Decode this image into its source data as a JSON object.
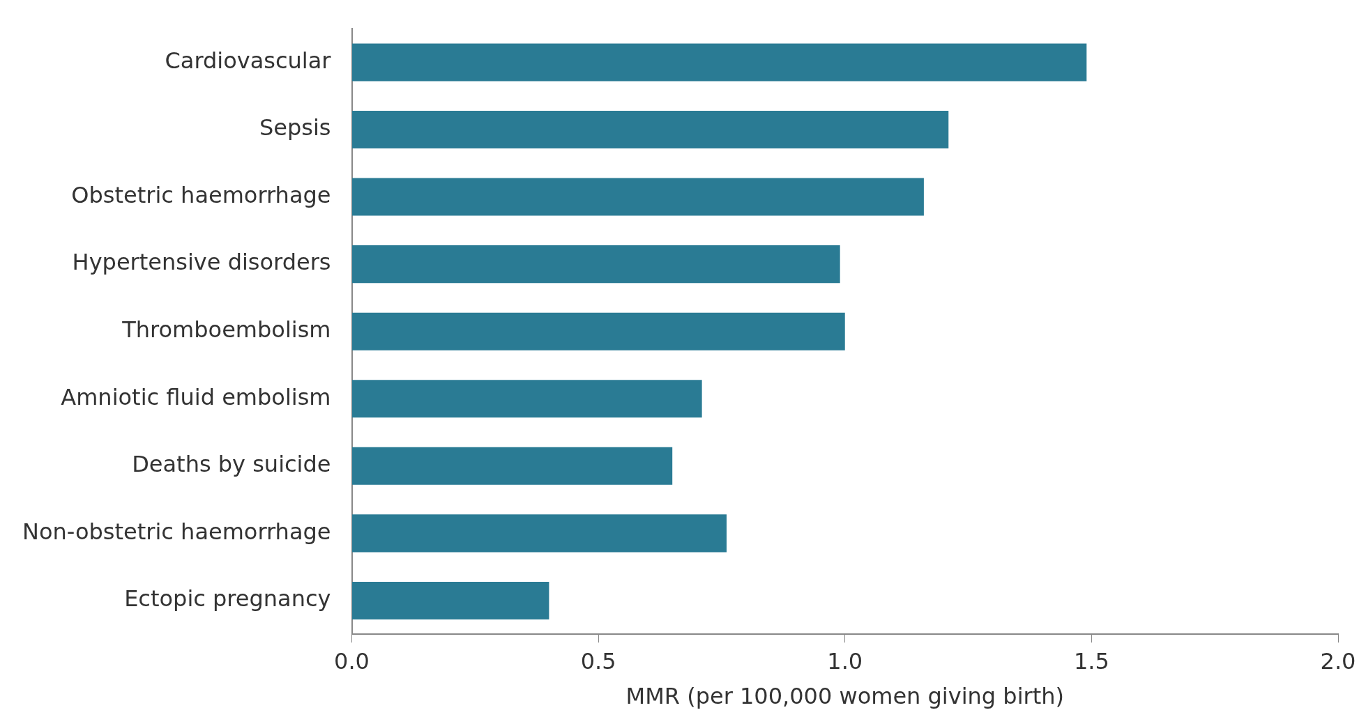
{
  "chart_data": {
    "type": "bar",
    "orientation": "horizontal",
    "xlabel": "MMR (per 100,000 women giving birth)",
    "categories": [
      "Cardiovascular",
      "Sepsis",
      "Obstetric haemorrhage",
      "Hypertensive disorders",
      "Thromboembolism",
      "Amniotic fluid embolism",
      "Deaths by suicide",
      "Non-obstetric haemorrhage",
      "Ectopic pregnancy"
    ],
    "values": [
      1.49,
      1.21,
      1.16,
      0.99,
      1.0,
      0.71,
      0.65,
      0.76,
      0.4
    ],
    "color": "#2a7b94",
    "xlim": [
      0,
      2
    ],
    "xticks": [
      {
        "value": 0,
        "label": "0.0"
      },
      {
        "value": 0.5,
        "label": "0.5"
      },
      {
        "value": 1,
        "label": "1.0"
      },
      {
        "value": 1.5,
        "label": "1.5"
      },
      {
        "value": 2,
        "label": "2.0"
      }
    ],
    "grid": false,
    "legend": false
  }
}
